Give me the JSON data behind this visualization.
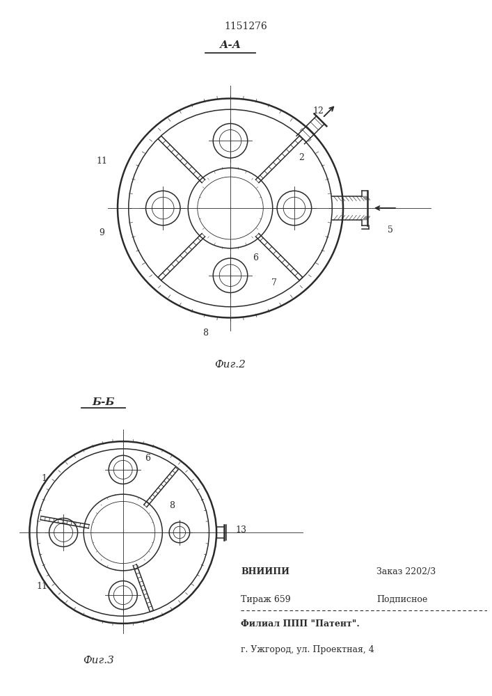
{
  "patent_number": "1151276",
  "fig2_label": "А-А",
  "fig2_caption": "Фиг.2",
  "fig3_label": "Б-Б",
  "fig3_caption": "Фиг.3",
  "footer_col1_line1": "ВНИИПИ",
  "footer_col1_line2": "Тираж 659",
  "footer_col2_line1": "Заказ 2202/3",
  "footer_col2_line2": "Подписное",
  "footer_line3": "Филиал ППП \"Патент\".",
  "footer_line4": "г. Ужгород, ул. Проектная, 4",
  "bg_color": "#ffffff",
  "line_color": "#2a2a2a"
}
